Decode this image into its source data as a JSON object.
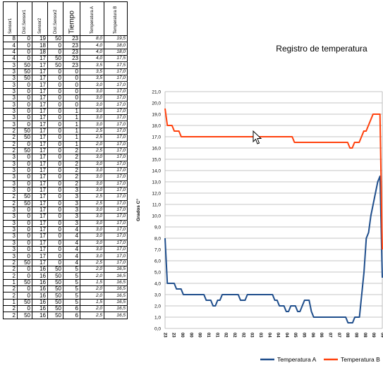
{
  "table": {
    "headers": [
      "Sensor1",
      "Dist.Sensor1",
      "Sensor2",
      "Dist.Sensor2",
      "Tiempo",
      "Temperatura A",
      "Temperatura B"
    ],
    "rows": [
      [
        "8",
        "0",
        "19",
        "50",
        "23",
        "8,0",
        "19,5"
      ],
      [
        "4",
        "0",
        "18",
        "0",
        "23",
        "4,0",
        "18,0"
      ],
      [
        "4",
        "0",
        "18",
        "0",
        "23",
        "4,0",
        "18,0"
      ],
      [
        "4",
        "0",
        "17",
        "50",
        "23",
        "4,0",
        "17,5"
      ],
      [
        "3",
        "50",
        "17",
        "50",
        "23",
        "3,5",
        "17,5"
      ],
      [
        "3",
        "50",
        "17",
        "0",
        "0",
        "3,5",
        "17,0"
      ],
      [
        "3",
        "50",
        "17",
        "0",
        "0",
        "3,5",
        "17,0"
      ],
      [
        "3",
        "0",
        "17",
        "0",
        "0",
        "3,0",
        "17,0"
      ],
      [
        "3",
        "0",
        "17",
        "0",
        "0",
        "3,0",
        "17,0"
      ],
      [
        "3",
        "0",
        "17",
        "0",
        "0",
        "3,0",
        "17,0"
      ],
      [
        "3",
        "0",
        "17",
        "0",
        "0",
        "3,0",
        "17,0"
      ],
      [
        "3",
        "0",
        "17",
        "0",
        "1",
        "3,0",
        "17,0"
      ],
      [
        "3",
        "0",
        "17",
        "0",
        "1",
        "3,0",
        "17,0"
      ],
      [
        "3",
        "0",
        "17",
        "0",
        "1",
        "3,0",
        "17,0"
      ],
      [
        "2",
        "50",
        "17",
        "0",
        "1",
        "2,5",
        "17,0"
      ],
      [
        "2",
        "50",
        "17",
        "0",
        "1",
        "2,5",
        "17,0"
      ],
      [
        "2",
        "0",
        "17",
        "0",
        "1",
        "2,0",
        "17,0"
      ],
      [
        "2",
        "50",
        "17",
        "0",
        "2",
        "2,5",
        "17,0"
      ],
      [
        "3",
        "0",
        "17",
        "0",
        "2",
        "3,0",
        "17,0"
      ],
      [
        "3",
        "0",
        "17",
        "0",
        "2",
        "3,0",
        "17,0"
      ],
      [
        "3",
        "0",
        "17",
        "0",
        "2",
        "3,0",
        "17,0"
      ],
      [
        "3",
        "0",
        "17",
        "0",
        "2",
        "3,0",
        "17,0"
      ],
      [
        "3",
        "0",
        "17",
        "0",
        "2",
        "3,0",
        "17,0"
      ],
      [
        "3",
        "0",
        "17",
        "0",
        "3",
        "3,0",
        "17,0"
      ],
      [
        "2",
        "50",
        "17",
        "0",
        "3",
        "2,5",
        "17,0"
      ],
      [
        "2",
        "50",
        "17",
        "0",
        "3",
        "2,5",
        "17,0"
      ],
      [
        "3",
        "0",
        "17",
        "0",
        "3",
        "3,0",
        "17,0"
      ],
      [
        "3",
        "0",
        "17",
        "0",
        "3",
        "3,0",
        "17,0"
      ],
      [
        "3",
        "0",
        "17",
        "0",
        "3",
        "3,0",
        "17,0"
      ],
      [
        "3",
        "0",
        "17",
        "0",
        "4",
        "3,0",
        "17,0"
      ],
      [
        "3",
        "0",
        "17",
        "0",
        "4",
        "3,0",
        "17,0"
      ],
      [
        "3",
        "0",
        "17",
        "0",
        "4",
        "3,0",
        "17,0"
      ],
      [
        "3",
        "0",
        "17",
        "0",
        "4",
        "3,0",
        "17,0"
      ],
      [
        "3",
        "0",
        "17",
        "0",
        "4",
        "3,0",
        "17,0"
      ],
      [
        "2",
        "50",
        "17",
        "0",
        "4",
        "2,5",
        "17,0"
      ],
      [
        "2",
        "0",
        "16",
        "50",
        "5",
        "2,0",
        "16,5"
      ],
      [
        "2",
        "0",
        "16",
        "50",
        "5",
        "2,0",
        "16,5"
      ],
      [
        "1",
        "50",
        "16",
        "50",
        "5",
        "1,5",
        "16,5"
      ],
      [
        "2",
        "0",
        "16",
        "50",
        "5",
        "2,0",
        "16,5"
      ],
      [
        "2",
        "0",
        "16",
        "50",
        "5",
        "2,0",
        "16,5"
      ],
      [
        "1",
        "50",
        "16",
        "50",
        "5",
        "1,5",
        "16,5"
      ],
      [
        "2",
        "0",
        "16",
        "50",
        "6",
        "2,0",
        "16,5"
      ],
      [
        "2",
        "50",
        "16",
        "50",
        "6",
        "2,5",
        "16,5"
      ]
    ]
  },
  "chart_data": {
    "type": "line",
    "title": "Registro de temperatura",
    "ylabel": "Grados C°",
    "ylim": [
      0,
      21
    ],
    "ytick_step": 1,
    "grid": true,
    "legend_position": "bottom",
    "x_tick_labels": [
      "23",
      "23",
      "00",
      "00",
      "00",
      "01",
      "01",
      "02",
      "02",
      "02",
      "03",
      "03",
      "04",
      "04",
      "04",
      "05",
      "05",
      "06",
      "06",
      "07",
      "07",
      "08",
      "08",
      "08",
      "09",
      "09"
    ],
    "series": [
      {
        "name": "Temperatura A",
        "color": "#1F4E8C",
        "values": [
          8,
          4,
          4,
          4,
          4,
          3.5,
          3.5,
          3.5,
          3,
          3,
          3,
          3,
          3,
          3,
          3,
          3,
          3,
          3,
          2.5,
          2.5,
          2.5,
          2,
          2,
          2.5,
          2.5,
          3,
          3,
          3,
          3,
          3,
          3,
          3,
          3,
          2.5,
          2.5,
          2.5,
          3,
          3,
          3,
          3,
          3,
          3,
          3,
          3,
          3,
          3,
          3,
          3,
          2.5,
          2.5,
          2,
          2,
          2,
          1.5,
          1.5,
          2,
          2,
          2,
          1.5,
          1.5,
          2,
          2.5,
          2.5,
          2.5,
          1.5,
          1,
          1,
          1,
          1,
          1,
          1,
          1,
          1,
          1,
          1,
          1,
          1,
          1,
          1,
          1,
          0.5,
          0.5,
          0.5,
          1,
          1,
          1,
          3,
          5,
          8,
          8.5,
          10,
          11,
          12,
          13,
          13.5,
          4.5
        ]
      },
      {
        "name": "Temperatura B",
        "color": "#FF420E",
        "values": [
          19.5,
          18,
          18,
          18,
          17.5,
          17.5,
          17.5,
          17,
          17,
          17,
          17,
          17,
          17,
          17,
          17,
          17,
          17,
          17,
          17,
          17,
          17,
          17,
          17,
          17,
          17,
          17,
          17,
          17,
          17,
          17,
          17,
          17,
          17,
          17,
          17,
          17,
          17,
          17,
          17,
          17,
          17,
          17,
          17,
          17,
          17,
          17,
          17,
          17,
          17,
          17,
          17,
          17,
          17,
          17,
          17,
          17,
          16.5,
          16.5,
          16.5,
          16.5,
          16.5,
          16.5,
          16.5,
          16.5,
          16.5,
          16.5,
          16.5,
          16.5,
          16.5,
          16.5,
          16.5,
          16.5,
          16.5,
          16.5,
          16.5,
          16.5,
          16.5,
          16.5,
          16.5,
          16.5,
          16,
          16,
          16.5,
          16.5,
          16.5,
          17,
          17.5,
          17.5,
          18,
          18.5,
          19,
          19,
          19,
          19,
          7
        ]
      }
    ]
  }
}
